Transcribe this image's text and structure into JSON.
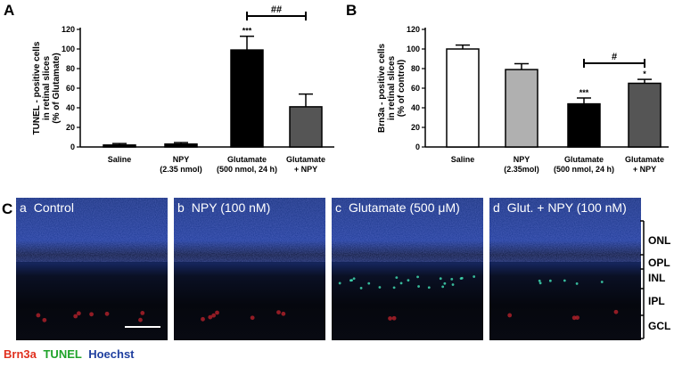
{
  "panels": {
    "A": "A",
    "B": "B",
    "C": "C"
  },
  "chart_data": [
    {
      "id": "A",
      "type": "bar",
      "ylabel_lines": [
        "TUNEL - positive cells",
        "in retinal slices",
        "(% of Glutamate)"
      ],
      "ylim": [
        0,
        120
      ],
      "yticks": [
        0,
        20,
        40,
        60,
        80,
        100,
        120
      ],
      "categories": [
        {
          "lines": [
            "Saline"
          ],
          "value": 2,
          "error": 1.5,
          "fill": "#000000",
          "sig": ""
        },
        {
          "lines": [
            "NPY",
            "(2.35 nmol)"
          ],
          "value": 3,
          "error": 1.5,
          "fill": "#000000",
          "sig": ""
        },
        {
          "lines": [
            "Glutamate",
            "(500 nmol, 24 h)"
          ],
          "value": 99,
          "error": 14,
          "fill": "#000000",
          "sig": "***"
        },
        {
          "lines": [
            "Glutamate",
            "+ NPY"
          ],
          "value": 41,
          "error": 13,
          "fill": "#555555",
          "sig": ""
        }
      ],
      "bracket": {
        "from": 2,
        "to": 3,
        "label": "##"
      }
    },
    {
      "id": "B",
      "type": "bar",
      "ylabel_lines": [
        "Brn3a - positive cells",
        "in retinal slices",
        "(% of control)"
      ],
      "ylim": [
        0,
        120
      ],
      "yticks": [
        0,
        20,
        40,
        60,
        80,
        100,
        120
      ],
      "categories": [
        {
          "lines": [
            "Saline"
          ],
          "value": 100,
          "error": 4,
          "fill": "#ffffff",
          "sig": ""
        },
        {
          "lines": [
            "NPY",
            "(2.35mol)"
          ],
          "value": 79,
          "error": 6,
          "fill": "#b0b0b0",
          "sig": ""
        },
        {
          "lines": [
            "Glutamate",
            "(500 nmol, 24 h)"
          ],
          "value": 44,
          "error": 6,
          "fill": "#000000",
          "sig": "***"
        },
        {
          "lines": [
            "Glutamate",
            "+ NPY"
          ],
          "value": 65,
          "error": 4,
          "fill": "#555555",
          "sig": "*"
        }
      ],
      "bracket": {
        "from": 2,
        "to": 3,
        "label": "#"
      }
    }
  ],
  "micrographs": [
    {
      "letter": "a",
      "title": "Control"
    },
    {
      "letter": "b",
      "title": "NPY (100 nM)"
    },
    {
      "letter": "c",
      "title": "Glutamate (500 μM)"
    },
    {
      "letter": "d",
      "title": "Glut. + NPY (100 nM)"
    }
  ],
  "layers": [
    "ONL",
    "OPL",
    "INL",
    "IPL",
    "GCL"
  ],
  "legend": [
    {
      "text": "Brn3a",
      "color": "#e0301e"
    },
    {
      "text": "TUNEL",
      "color": "#1fa32a"
    },
    {
      "text": "Hoechst",
      "color": "#1f3f9f"
    }
  ]
}
